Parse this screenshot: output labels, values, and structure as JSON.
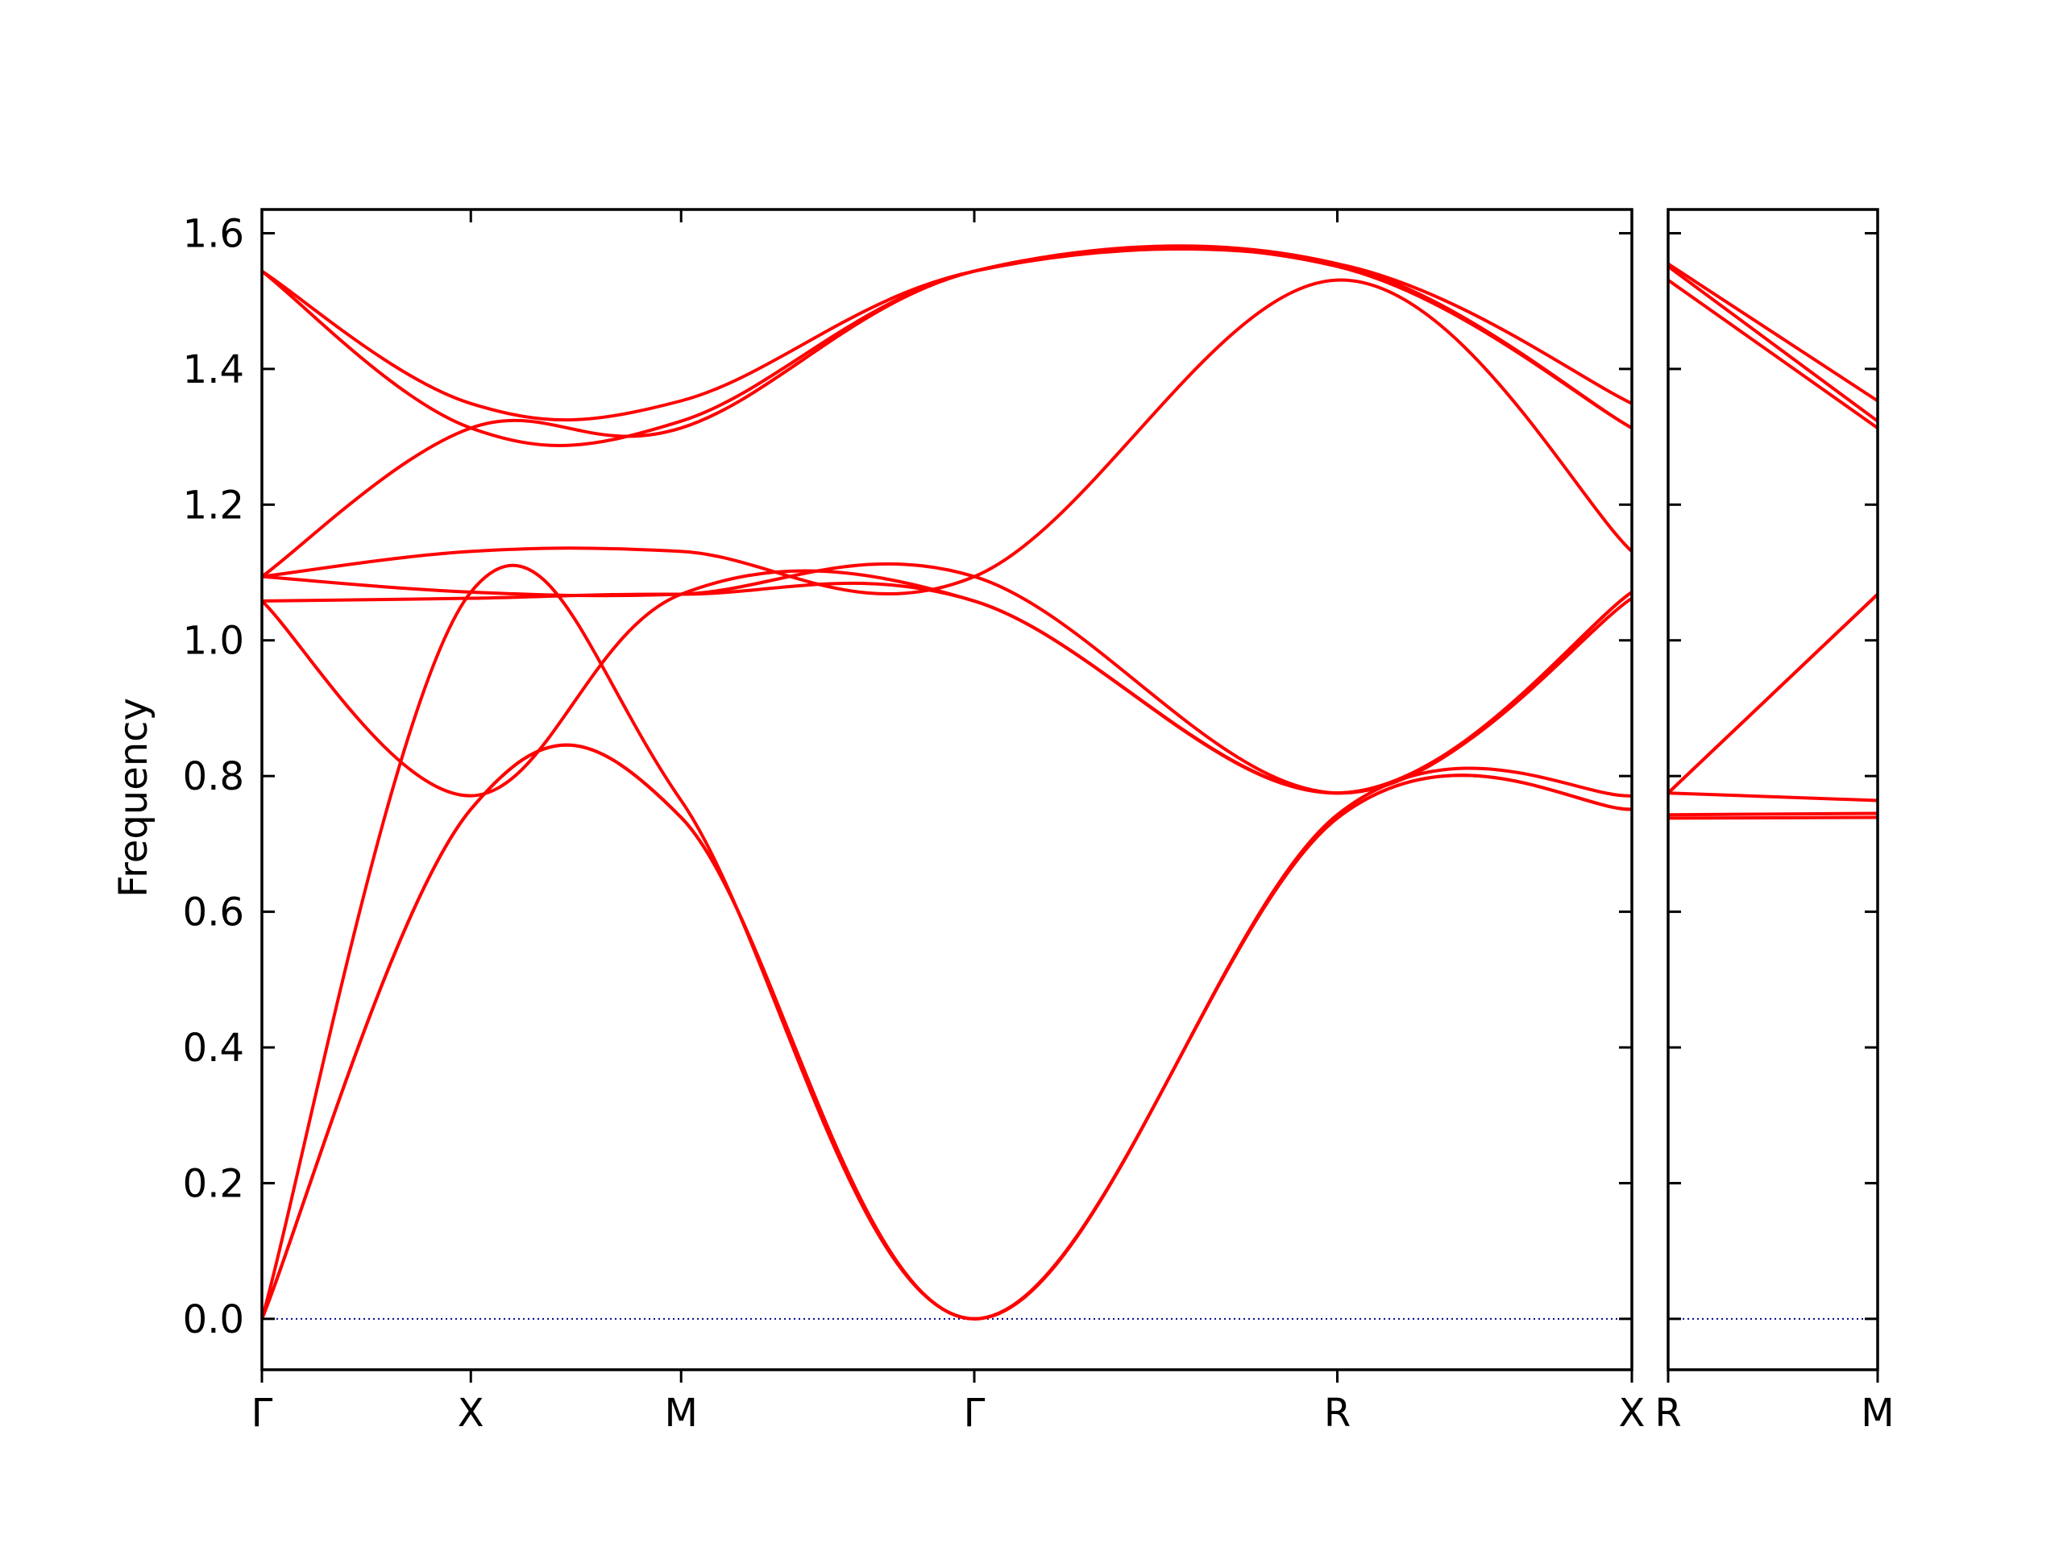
{
  "chart_data": {
    "type": "line",
    "ylabel": "Frequency",
    "ylim": [
      -0.075,
      1.635
    ],
    "yticks": [
      "0.0",
      "0.2",
      "0.4",
      "0.6",
      "0.8",
      "1.0",
      "1.2",
      "1.4",
      "1.6"
    ],
    "yticks_values": [
      0.0,
      0.2,
      0.4,
      0.6,
      0.8,
      1.0,
      1.2,
      1.4,
      1.6
    ],
    "zero_line": true,
    "line_color": "#ff0000",
    "zero_line_color": "#00008b",
    "panels": [
      {
        "path_labels": [
          "Γ",
          "X",
          "M",
          "Γ",
          "R",
          "X"
        ],
        "bands": [
          {
            "x": [
              0,
              0.1525,
              0.306,
              0.52,
              0.785,
              1.0
            ],
            "y": [
              0.0,
              0.751,
              0.739,
              0.0,
              0.738,
              0.751
            ]
          },
          {
            "x": [
              0,
              0.1525,
              0.306,
              0.52,
              0.785,
              1.0
            ],
            "y": [
              0.0,
              0.751,
              0.739,
              0.0,
              0.738,
              0.751
            ]
          },
          {
            "x": [
              0,
              0.1525,
              0.306,
              0.52,
              0.785,
              1.0
            ],
            "y": [
              0.0,
              1.071,
              0.764,
              0.0,
              0.743,
              0.771
            ]
          },
          {
            "x": [
              0,
              0.1525,
              0.306,
              0.52,
              0.785,
              1.0
            ],
            "y": [
              1.058,
              0.771,
              1.068,
              1.058,
              0.775,
              1.062
            ]
          },
          {
            "x": [
              0,
              0.1525,
              0.306,
              0.52,
              0.785,
              1.0
            ],
            "y": [
              1.058,
              1.062,
              1.068,
              1.058,
              0.775,
              1.071
            ]
          },
          {
            "x": [
              0,
              0.1525,
              0.306,
              0.52,
              0.785,
              1.0
            ],
            "y": [
              1.094,
              1.071,
              1.068,
              1.094,
              0.775,
              1.071
            ]
          },
          {
            "x": [
              0,
              0.1525,
              0.306,
              0.52,
              0.785,
              1.0
            ],
            "y": [
              1.094,
              1.131,
              1.131,
              1.094,
              1.531,
              1.131
            ]
          },
          {
            "x": [
              0,
              0.1525,
              0.306,
              0.52,
              0.785,
              1.0
            ],
            "y": [
              1.094,
              1.313,
              1.313,
              1.544,
              1.551,
              1.313
            ]
          },
          {
            "x": [
              0,
              0.1525,
              0.306,
              0.52,
              0.785,
              1.0
            ],
            "y": [
              1.544,
              1.313,
              1.323,
              1.544,
              1.555,
              1.313
            ]
          },
          {
            "x": [
              0,
              0.1525,
              0.306,
              0.52,
              0.785,
              1.0
            ],
            "y": [
              1.544,
              1.349,
              1.353,
              1.544,
              1.555,
              1.349
            ]
          }
        ]
      },
      {
        "path_labels": [
          "R",
          "M"
        ],
        "bands": [
          {
            "x": [
              0,
              1.0
            ],
            "y": [
              0.738,
              0.739
            ]
          },
          {
            "x": [
              0,
              1.0
            ],
            "y": [
              0.743,
              0.745
            ]
          },
          {
            "x": [
              0,
              1.0
            ],
            "y": [
              0.775,
              0.764
            ]
          },
          {
            "x": [
              0,
              1.0
            ],
            "y": [
              0.775,
              1.068
            ]
          },
          {
            "x": [
              0,
              1.0
            ],
            "y": [
              0.775,
              1.068
            ]
          },
          {
            "x": [
              0,
              1.0
            ],
            "y": [
              1.531,
              1.313
            ]
          },
          {
            "x": [
              0,
              1.0
            ],
            "y": [
              1.551,
              1.323
            ]
          },
          {
            "x": [
              0,
              1.0
            ],
            "y": [
              1.555,
              1.353
            ]
          }
        ]
      }
    ]
  }
}
